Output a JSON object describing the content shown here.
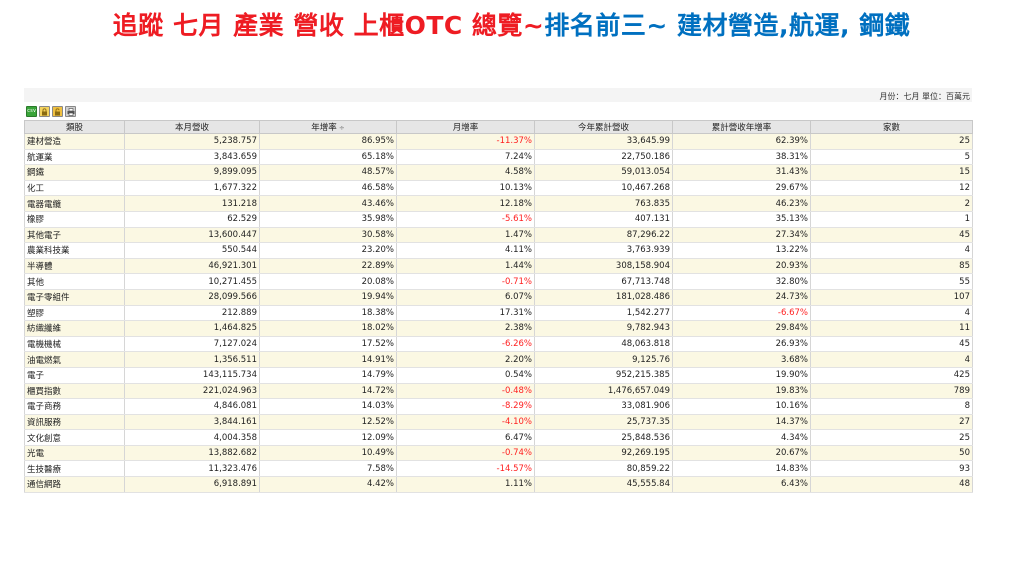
{
  "headline": {
    "part_red": "追蹤 七月 產業 營收 上櫃OTC 總覽~",
    "part_blue": "排名前三~ 建材營造,航運, 鋼鐵",
    "colors": {
      "red": "#ee1c23",
      "blue": "#0070c0"
    }
  },
  "panel": {
    "unit_note": "月份：七月 單位：百萬元",
    "toolbar": {
      "csv": "csv"
    }
  },
  "table": {
    "headers": [
      "類股",
      "本月營收",
      "年增率",
      "月增率",
      "今年累計營收",
      "累計營收年增率",
      "家數"
    ],
    "sort_indicator": "÷",
    "rows": [
      {
        "name": "建材營造",
        "rev": "5,238.757",
        "yoy": "86.95%",
        "mom": "-11.37%",
        "cum": "33,645.99",
        "cumyoy": "62.39%",
        "count": "25"
      },
      {
        "name": "航運業",
        "rev": "3,843.659",
        "yoy": "65.18%",
        "mom": "7.24%",
        "cum": "22,750.186",
        "cumyoy": "38.31%",
        "count": "5"
      },
      {
        "name": "鋼鐵",
        "rev": "9,899.095",
        "yoy": "48.57%",
        "mom": "4.58%",
        "cum": "59,013.054",
        "cumyoy": "31.43%",
        "count": "15"
      },
      {
        "name": "化工",
        "rev": "1,677.322",
        "yoy": "46.58%",
        "mom": "10.13%",
        "cum": "10,467.268",
        "cumyoy": "29.67%",
        "count": "12"
      },
      {
        "name": "電器電纜",
        "rev": "131.218",
        "yoy": "43.46%",
        "mom": "12.18%",
        "cum": "763.835",
        "cumyoy": "46.23%",
        "count": "2"
      },
      {
        "name": "橡膠",
        "rev": "62.529",
        "yoy": "35.98%",
        "mom": "-5.61%",
        "cum": "407.131",
        "cumyoy": "35.13%",
        "count": "1"
      },
      {
        "name": "其他電子",
        "rev": "13,600.447",
        "yoy": "30.58%",
        "mom": "1.47%",
        "cum": "87,296.22",
        "cumyoy": "27.34%",
        "count": "45"
      },
      {
        "name": "農業科技業",
        "rev": "550.544",
        "yoy": "23.20%",
        "mom": "4.11%",
        "cum": "3,763.939",
        "cumyoy": "13.22%",
        "count": "4"
      },
      {
        "name": "半導體",
        "rev": "46,921.301",
        "yoy": "22.89%",
        "mom": "1.44%",
        "cum": "308,158.904",
        "cumyoy": "20.93%",
        "count": "85"
      },
      {
        "name": "其他",
        "rev": "10,271.455",
        "yoy": "20.08%",
        "mom": "-0.71%",
        "cum": "67,713.748",
        "cumyoy": "32.80%",
        "count": "55"
      },
      {
        "name": "電子零組件",
        "rev": "28,099.566",
        "yoy": "19.94%",
        "mom": "6.07%",
        "cum": "181,028.486",
        "cumyoy": "24.73%",
        "count": "107"
      },
      {
        "name": "塑膠",
        "rev": "212.889",
        "yoy": "18.38%",
        "mom": "17.31%",
        "cum": "1,542.277",
        "cumyoy": "-6.67%",
        "count": "4"
      },
      {
        "name": "紡織纖維",
        "rev": "1,464.825",
        "yoy": "18.02%",
        "mom": "2.38%",
        "cum": "9,782.943",
        "cumyoy": "29.84%",
        "count": "11"
      },
      {
        "name": "電機機械",
        "rev": "7,127.024",
        "yoy": "17.52%",
        "mom": "-6.26%",
        "cum": "48,063.818",
        "cumyoy": "26.93%",
        "count": "45"
      },
      {
        "name": "油電燃氣",
        "rev": "1,356.511",
        "yoy": "14.91%",
        "mom": "2.20%",
        "cum": "9,125.76",
        "cumyoy": "3.68%",
        "count": "4"
      },
      {
        "name": "電子",
        "rev": "143,115.734",
        "yoy": "14.79%",
        "mom": "0.54%",
        "cum": "952,215.385",
        "cumyoy": "19.90%",
        "count": "425"
      },
      {
        "name": "櫃買指數",
        "rev": "221,024.963",
        "yoy": "14.72%",
        "mom": "-0.48%",
        "cum": "1,476,657.049",
        "cumyoy": "19.83%",
        "count": "789"
      },
      {
        "name": "電子商務",
        "rev": "4,846.081",
        "yoy": "14.03%",
        "mom": "-8.29%",
        "cum": "33,081.906",
        "cumyoy": "10.16%",
        "count": "8"
      },
      {
        "name": "資訊服務",
        "rev": "3,844.161",
        "yoy": "12.52%",
        "mom": "-4.10%",
        "cum": "25,737.35",
        "cumyoy": "14.37%",
        "count": "27"
      },
      {
        "name": "文化創意",
        "rev": "4,004.358",
        "yoy": "12.09%",
        "mom": "6.47%",
        "cum": "25,848.536",
        "cumyoy": "4.34%",
        "count": "25"
      },
      {
        "name": "光電",
        "rev": "13,882.682",
        "yoy": "10.49%",
        "mom": "-0.74%",
        "cum": "92,269.195",
        "cumyoy": "20.67%",
        "count": "50"
      },
      {
        "name": "生技醫療",
        "rev": "11,323.476",
        "yoy": "7.58%",
        "mom": "-14.57%",
        "cum": "80,859.22",
        "cumyoy": "14.83%",
        "count": "93"
      },
      {
        "name": "通信網路",
        "rev": "6,918.891",
        "yoy": "4.42%",
        "mom": "1.11%",
        "cum": "45,555.84",
        "cumyoy": "6.43%",
        "count": "48"
      }
    ]
  }
}
